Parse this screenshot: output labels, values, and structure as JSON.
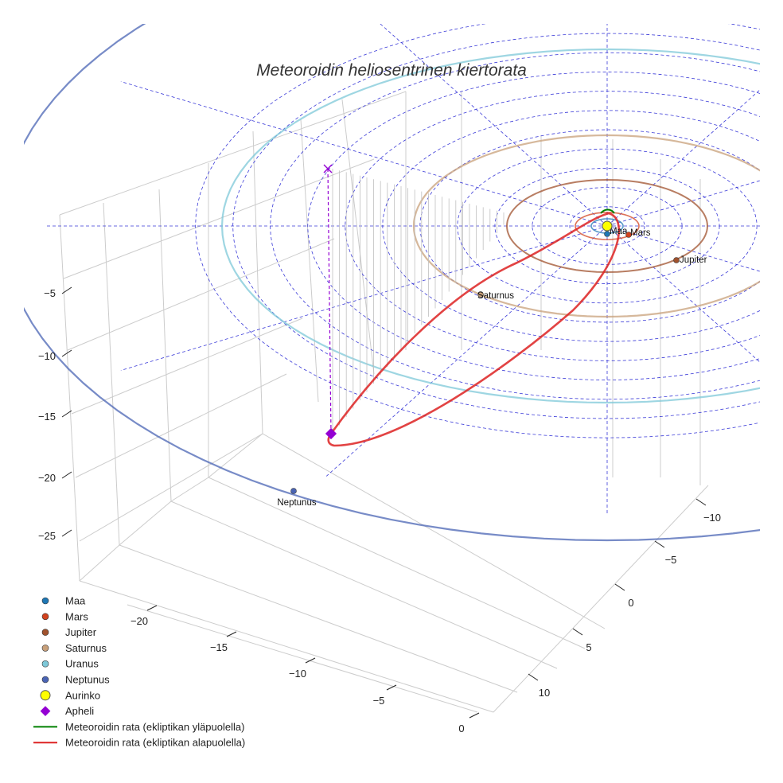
{
  "chart_data": {
    "type": "scatter",
    "title": "Meteoroidin heliosentrinen kiertorata",
    "axes": {
      "x_ticks": [
        "−20",
        "−15",
        "−10",
        "−5",
        "0"
      ],
      "y_ticks": [
        "−10",
        "−5",
        "0",
        "5",
        "10"
      ],
      "z_ticks": [
        "−5",
        "−10",
        "−15",
        "−20",
        "−25"
      ],
      "xlabel": "",
      "ylabel": "",
      "zlabel": "",
      "grid": true,
      "grid_color": "#cccccc"
    },
    "planets": [
      {
        "name": "Maa",
        "label": "Maa",
        "color": "#1f77b4",
        "orbit_radius_au": 1.0
      },
      {
        "name": "Mars",
        "label": "Mars",
        "color": "#d2421e",
        "orbit_radius_au": 1.52
      },
      {
        "name": "Jupiter",
        "label": "Jupiter",
        "color": "#a0522d",
        "orbit_radius_au": 5.2
      },
      {
        "name": "Saturnus",
        "label": "Saturnus",
        "color": "#c8a07a",
        "orbit_radius_au": 9.54
      },
      {
        "name": "Uranus",
        "label": "Uranus",
        "color": "#7ec8d8",
        "orbit_radius_au": 19.2
      },
      {
        "name": "Neptunus",
        "label": "Neptunus",
        "color": "#4a64b4",
        "orbit_radius_au": 30.1
      }
    ],
    "sun": {
      "name": "Aurinko",
      "color": "#ffff00"
    },
    "aphelion": {
      "name": "Apheli",
      "color": "#9400d3"
    },
    "meteoroid": {
      "above_label": "Meteoroidin rata (ekliptikan yläpuolella)",
      "below_label": "Meteoroidin rata (ekliptikan alapuolella)",
      "above_color": "#008000",
      "below_color": "#dd2222"
    },
    "legend": {
      "placement": "bottom-left",
      "entries": [
        {
          "label": "Maa",
          "marker": "circle",
          "color": "#1f77b4"
        },
        {
          "label": "Mars",
          "marker": "circle",
          "color": "#d2421e"
        },
        {
          "label": "Jupiter",
          "marker": "circle",
          "color": "#a0522d"
        },
        {
          "label": "Saturnus",
          "marker": "circle",
          "color": "#c8a07a"
        },
        {
          "label": "Uranus",
          "marker": "circle",
          "color": "#7ec8d8"
        },
        {
          "label": "Neptunus",
          "marker": "circle",
          "color": "#4a64b4"
        },
        {
          "label": "Aurinko",
          "marker": "circle-large",
          "color": "#ffff00"
        },
        {
          "label": "Apheli",
          "marker": "diamond",
          "color": "#9400d3"
        },
        {
          "label": "Meteoroidin rata (ekliptikan yläpuolella)",
          "marker": "line",
          "color": "#008000"
        },
        {
          "label": "Meteoroidin rata (ekliptikan alapuolella)",
          "marker": "line",
          "color": "#dd2222"
        }
      ]
    }
  }
}
